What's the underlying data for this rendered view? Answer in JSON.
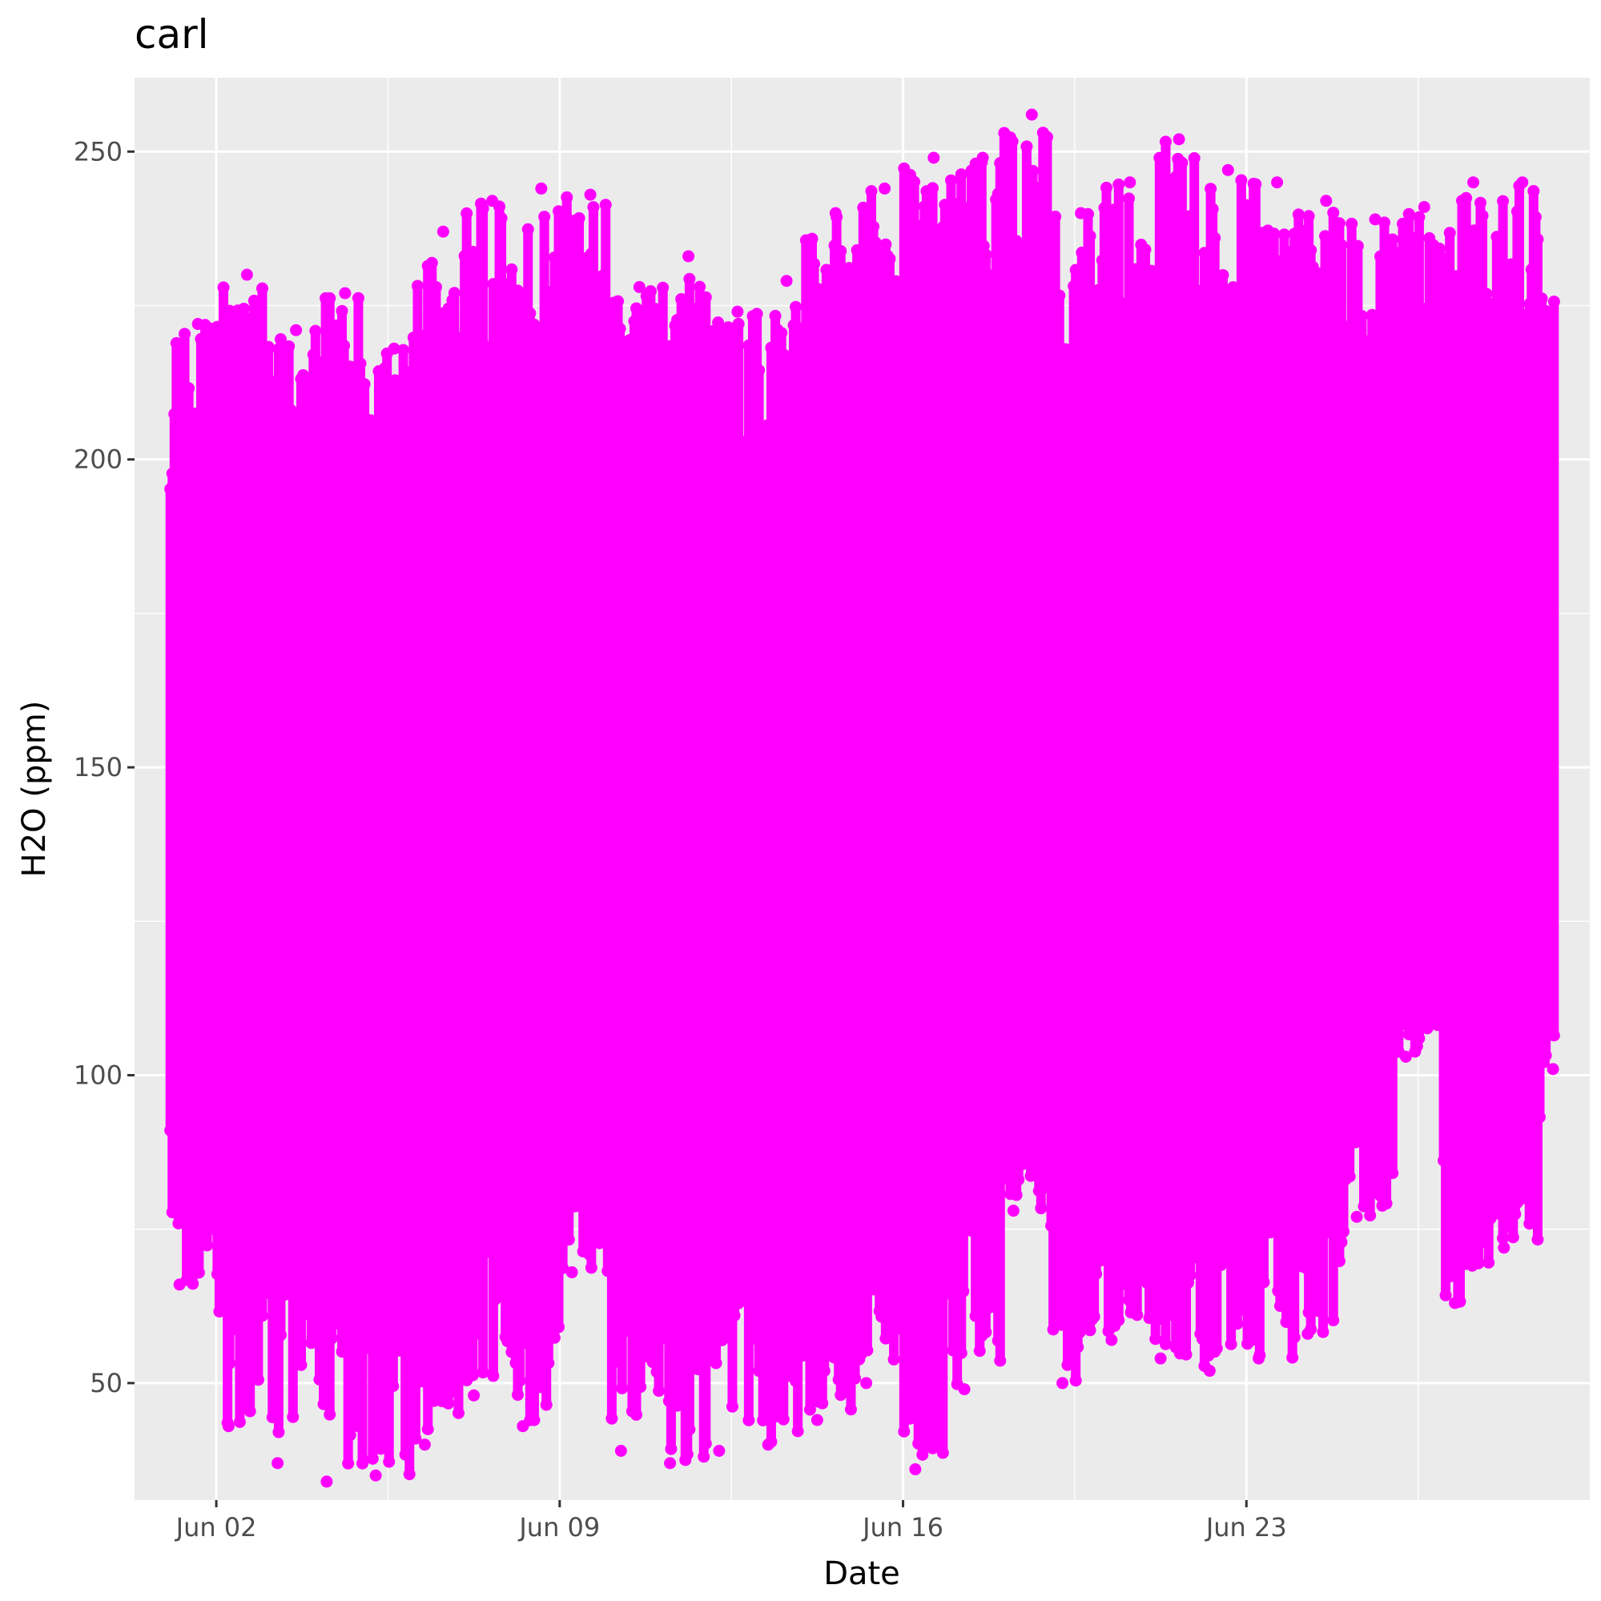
{
  "chart_data": {
    "type": "scatter",
    "title": "carl",
    "xlabel": "Date",
    "ylabel": "H2O (ppm)",
    "point_color": "#ff00ff",
    "panel_background": "#ebebeb",
    "grid": true,
    "x_axis": {
      "type": "date",
      "limits": [
        "2024-05-31T08:00",
        "2024-06-30T00:00"
      ],
      "ticks": [
        {
          "value": "2024-06-02",
          "label": "Jun 02"
        },
        {
          "value": "2024-06-09",
          "label": "Jun 09"
        },
        {
          "value": "2024-06-16",
          "label": "Jun 16"
        },
        {
          "value": "2024-06-23",
          "label": "Jun 23"
        }
      ]
    },
    "y_axis": {
      "limits": [
        31,
        262
      ],
      "ticks": [
        50,
        100,
        150,
        200,
        250
      ]
    },
    "series": [
      {
        "note_gap": "no data between about Jun 07 11:00 and Jun 07 13:00",
        "daily_envelope": [
          {
            "date": "2024-06-01",
            "min": 66,
            "max": 222
          },
          {
            "date": "2024-06-02",
            "min": 43,
            "max": 230
          },
          {
            "date": "2024-06-03",
            "min": 37,
            "max": 221
          },
          {
            "date": "2024-06-04",
            "min": 34,
            "max": 227
          },
          {
            "date": "2024-06-05",
            "min": 35,
            "max": 218
          },
          {
            "date": "2024-06-06",
            "min": 40,
            "max": 237
          },
          {
            "date": "2024-06-07",
            "min": 48,
            "max": 242
          },
          {
            "date": "2024-06-08",
            "min": 43,
            "max": 244
          },
          {
            "date": "2024-06-09",
            "min": 68,
            "max": 243
          },
          {
            "date": "2024-06-10",
            "min": 39,
            "max": 228
          },
          {
            "date": "2024-06-11",
            "min": 37,
            "max": 233
          },
          {
            "date": "2024-06-12",
            "min": 39,
            "max": 224
          },
          {
            "date": "2024-06-13",
            "min": 40,
            "max": 229
          },
          {
            "date": "2024-06-14",
            "min": 44,
            "max": 240
          },
          {
            "date": "2024-06-15",
            "min": 50,
            "max": 244
          },
          {
            "date": "2024-06-16",
            "min": 36,
            "max": 249
          },
          {
            "date": "2024-06-17",
            "min": 49,
            "max": 249
          },
          {
            "date": "2024-06-18",
            "min": 78,
            "max": 256
          },
          {
            "date": "2024-06-19",
            "min": 50,
            "max": 240
          },
          {
            "date": "2024-06-20",
            "min": 57,
            "max": 245
          },
          {
            "date": "2024-06-21",
            "min": 54,
            "max": 252
          },
          {
            "date": "2024-06-22",
            "min": 52,
            "max": 247
          },
          {
            "date": "2024-06-23",
            "min": 54,
            "max": 245
          },
          {
            "date": "2024-06-24",
            "min": 58,
            "max": 242
          },
          {
            "date": "2024-06-25",
            "min": 77,
            "max": 239
          },
          {
            "date": "2024-06-26",
            "min": 103,
            "max": 241
          },
          {
            "date": "2024-06-27",
            "min": 63,
            "max": 245
          },
          {
            "date": "2024-06-28",
            "min": 72,
            "max": 245
          },
          {
            "date": "2024-06-29",
            "min": 101,
            "max": 239
          }
        ],
        "data_extent": [
          "2024-06-01T01:00",
          "2024-06-29T06:00"
        ]
      }
    ]
  }
}
